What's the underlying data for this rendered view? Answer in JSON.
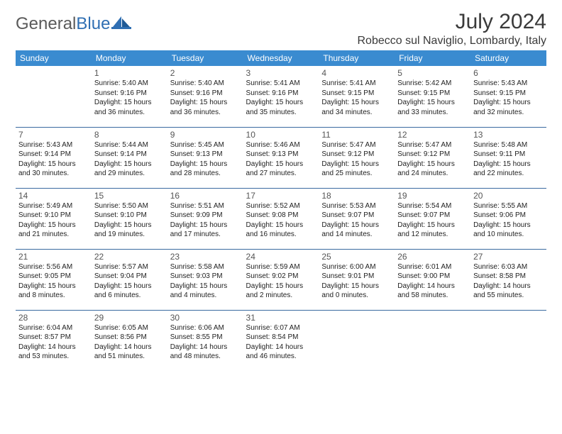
{
  "brand": {
    "part1": "General",
    "part2": "Blue"
  },
  "title": "July 2024",
  "location": "Robecco sul Naviglio, Lombardy, Italy",
  "colors": {
    "header_bg": "#3a8bd0",
    "header_text": "#ffffff",
    "cell_border": "#3a6aa0",
    "text": "#222222",
    "brand_gray": "#5a5a5a",
    "brand_blue": "#2f6fb3"
  },
  "weekdays": [
    "Sunday",
    "Monday",
    "Tuesday",
    "Wednesday",
    "Thursday",
    "Friday",
    "Saturday"
  ],
  "weeks": [
    [
      null,
      {
        "n": "1",
        "sr": "5:40 AM",
        "ss": "9:16 PM",
        "dl": "15 hours and 36 minutes."
      },
      {
        "n": "2",
        "sr": "5:40 AM",
        "ss": "9:16 PM",
        "dl": "15 hours and 36 minutes."
      },
      {
        "n": "3",
        "sr": "5:41 AM",
        "ss": "9:16 PM",
        "dl": "15 hours and 35 minutes."
      },
      {
        "n": "4",
        "sr": "5:41 AM",
        "ss": "9:15 PM",
        "dl": "15 hours and 34 minutes."
      },
      {
        "n": "5",
        "sr": "5:42 AM",
        "ss": "9:15 PM",
        "dl": "15 hours and 33 minutes."
      },
      {
        "n": "6",
        "sr": "5:43 AM",
        "ss": "9:15 PM",
        "dl": "15 hours and 32 minutes."
      }
    ],
    [
      {
        "n": "7",
        "sr": "5:43 AM",
        "ss": "9:14 PM",
        "dl": "15 hours and 30 minutes."
      },
      {
        "n": "8",
        "sr": "5:44 AM",
        "ss": "9:14 PM",
        "dl": "15 hours and 29 minutes."
      },
      {
        "n": "9",
        "sr": "5:45 AM",
        "ss": "9:13 PM",
        "dl": "15 hours and 28 minutes."
      },
      {
        "n": "10",
        "sr": "5:46 AM",
        "ss": "9:13 PM",
        "dl": "15 hours and 27 minutes."
      },
      {
        "n": "11",
        "sr": "5:47 AM",
        "ss": "9:12 PM",
        "dl": "15 hours and 25 minutes."
      },
      {
        "n": "12",
        "sr": "5:47 AM",
        "ss": "9:12 PM",
        "dl": "15 hours and 24 minutes."
      },
      {
        "n": "13",
        "sr": "5:48 AM",
        "ss": "9:11 PM",
        "dl": "15 hours and 22 minutes."
      }
    ],
    [
      {
        "n": "14",
        "sr": "5:49 AM",
        "ss": "9:10 PM",
        "dl": "15 hours and 21 minutes."
      },
      {
        "n": "15",
        "sr": "5:50 AM",
        "ss": "9:10 PM",
        "dl": "15 hours and 19 minutes."
      },
      {
        "n": "16",
        "sr": "5:51 AM",
        "ss": "9:09 PM",
        "dl": "15 hours and 17 minutes."
      },
      {
        "n": "17",
        "sr": "5:52 AM",
        "ss": "9:08 PM",
        "dl": "15 hours and 16 minutes."
      },
      {
        "n": "18",
        "sr": "5:53 AM",
        "ss": "9:07 PM",
        "dl": "15 hours and 14 minutes."
      },
      {
        "n": "19",
        "sr": "5:54 AM",
        "ss": "9:07 PM",
        "dl": "15 hours and 12 minutes."
      },
      {
        "n": "20",
        "sr": "5:55 AM",
        "ss": "9:06 PM",
        "dl": "15 hours and 10 minutes."
      }
    ],
    [
      {
        "n": "21",
        "sr": "5:56 AM",
        "ss": "9:05 PM",
        "dl": "15 hours and 8 minutes."
      },
      {
        "n": "22",
        "sr": "5:57 AM",
        "ss": "9:04 PM",
        "dl": "15 hours and 6 minutes."
      },
      {
        "n": "23",
        "sr": "5:58 AM",
        "ss": "9:03 PM",
        "dl": "15 hours and 4 minutes."
      },
      {
        "n": "24",
        "sr": "5:59 AM",
        "ss": "9:02 PM",
        "dl": "15 hours and 2 minutes."
      },
      {
        "n": "25",
        "sr": "6:00 AM",
        "ss": "9:01 PM",
        "dl": "15 hours and 0 minutes."
      },
      {
        "n": "26",
        "sr": "6:01 AM",
        "ss": "9:00 PM",
        "dl": "14 hours and 58 minutes."
      },
      {
        "n": "27",
        "sr": "6:03 AM",
        "ss": "8:58 PM",
        "dl": "14 hours and 55 minutes."
      }
    ],
    [
      {
        "n": "28",
        "sr": "6:04 AM",
        "ss": "8:57 PM",
        "dl": "14 hours and 53 minutes."
      },
      {
        "n": "29",
        "sr": "6:05 AM",
        "ss": "8:56 PM",
        "dl": "14 hours and 51 minutes."
      },
      {
        "n": "30",
        "sr": "6:06 AM",
        "ss": "8:55 PM",
        "dl": "14 hours and 48 minutes."
      },
      {
        "n": "31",
        "sr": "6:07 AM",
        "ss": "8:54 PM",
        "dl": "14 hours and 46 minutes."
      },
      null,
      null,
      null
    ]
  ],
  "labels": {
    "sunrise": "Sunrise:",
    "sunset": "Sunset:",
    "daylight": "Daylight:"
  }
}
